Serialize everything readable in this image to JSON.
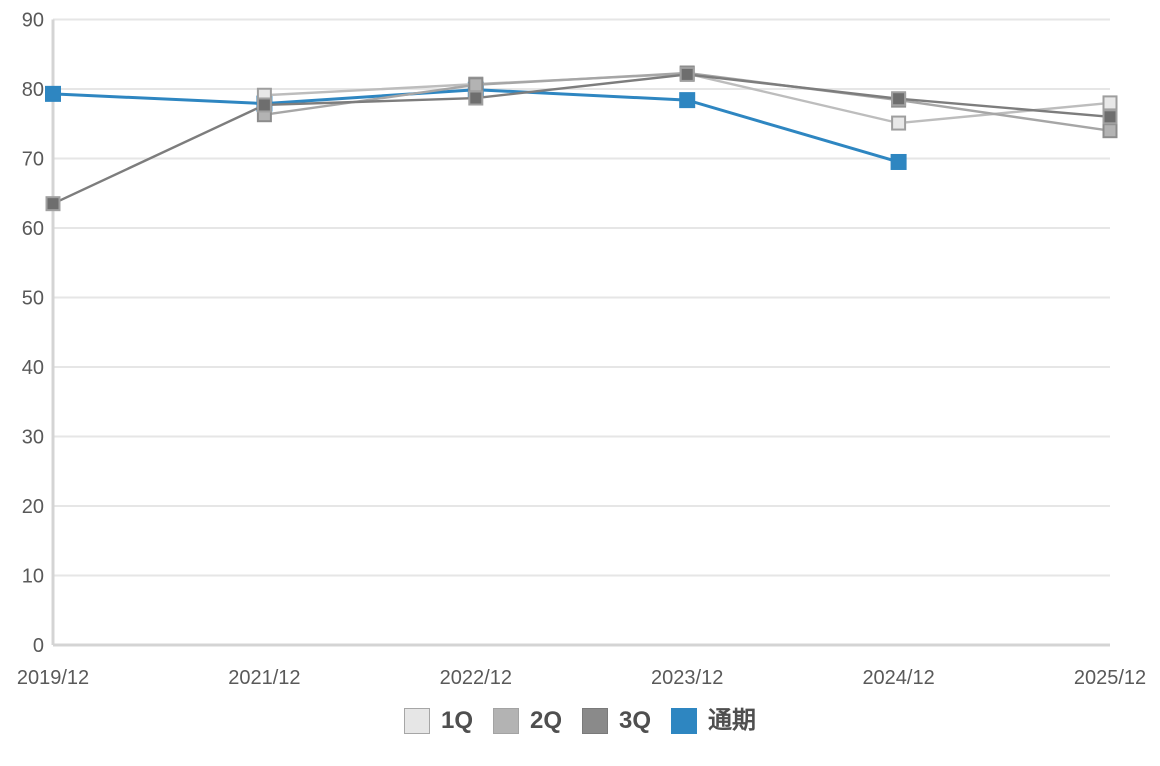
{
  "chart_data": {
    "type": "line",
    "title": "",
    "xlabel": "",
    "ylabel": "",
    "categories": [
      "2019/12",
      "2021/12",
      "2022/12",
      "2023/12",
      "2024/12",
      "2025/12"
    ],
    "series": [
      {
        "name": "1Q",
        "line_color": "#bdbdbd",
        "marker_fill": "#e8e8e8",
        "marker_border": "#9e9e9e",
        "values": [
          null,
          79.1,
          80.7,
          82.2,
          75.1,
          78.0
        ]
      },
      {
        "name": "2Q",
        "line_color": "#a6a6a6",
        "marker_fill": "#b3b3b3",
        "marker_border": "#8c8c8c",
        "values": [
          null,
          76.3,
          80.6,
          82.3,
          78.4,
          74.0
        ]
      },
      {
        "name": "3Q",
        "line_color": "#7d7d7d",
        "marker_fill": "#6e6e6e",
        "marker_border": "#a0a0a0",
        "values": [
          63.5,
          77.7,
          78.7,
          82.1,
          78.6,
          76.0
        ]
      },
      {
        "name": "通期",
        "line_color": "#2e86c1",
        "marker_fill": "#2e86c1",
        "marker_border": "#2e86c1",
        "values": [
          79.3,
          77.9,
          79.9,
          78.4,
          69.5,
          null
        ]
      }
    ],
    "draw_order": [
      3,
      0,
      1,
      2
    ],
    "ylim": [
      0,
      90
    ],
    "ytick_step": 10,
    "grid": true,
    "legend_position": "bottom",
    "legend_swatch_colors": [
      "#e6e6e6",
      "#b3b3b3",
      "#8a8a8a",
      "#2e86c1"
    ],
    "legend_swatch_borders": [
      "#a6a6a6",
      "#a3a3a3",
      "#7a7a7a",
      "#2e86c1"
    ]
  },
  "colors": {
    "grid_line": "#e6e6e6",
    "axis_line": "#d4d4d4",
    "tick_label": "#595959",
    "background": "#ffffff"
  }
}
